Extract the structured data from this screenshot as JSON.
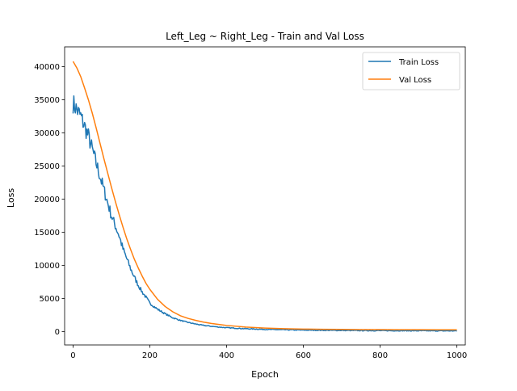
{
  "chart_data": {
    "type": "line",
    "title": "Left_Leg ~ Right_Leg - Train and Val Loss",
    "xlabel": "Epoch",
    "ylabel": "Loss",
    "xlim": [
      -22,
      1022
    ],
    "ylim": [
      -2000,
      43000
    ],
    "xticks": [
      0,
      200,
      400,
      600,
      800,
      1000
    ],
    "yticks": [
      0,
      5000,
      10000,
      15000,
      20000,
      25000,
      30000,
      35000,
      40000
    ],
    "grid": false,
    "legend_placement": "top-right",
    "series": [
      {
        "name": "Train Loss",
        "color": "#1f77b4",
        "x": [
          0,
          10,
          20,
          30,
          40,
          50,
          60,
          70,
          80,
          90,
          100,
          110,
          120,
          130,
          140,
          150,
          160,
          170,
          180,
          190,
          200,
          220,
          240,
          260,
          280,
          300,
          320,
          340,
          360,
          380,
          400,
          450,
          500,
          550,
          600,
          650,
          700,
          750,
          800,
          850,
          900,
          950,
          1000
        ],
        "values": [
          34500,
          33500,
          32500,
          31000,
          29500,
          27500,
          25500,
          23500,
          21500,
          19500,
          17500,
          16000,
          14500,
          12500,
          11000,
          9500,
          8200,
          7000,
          6000,
          5200,
          4300,
          3400,
          2700,
          2100,
          1700,
          1400,
          1150,
          950,
          820,
          700,
          600,
          450,
          350,
          290,
          240,
          210,
          190,
          170,
          160,
          150,
          140,
          130,
          120
        ]
      },
      {
        "name": "Val Loss",
        "color": "#ff7f0e",
        "x": [
          0,
          10,
          20,
          30,
          40,
          50,
          60,
          70,
          80,
          90,
          100,
          110,
          120,
          130,
          140,
          150,
          160,
          170,
          180,
          190,
          200,
          220,
          240,
          260,
          280,
          300,
          320,
          340,
          360,
          380,
          400,
          450,
          500,
          550,
          600,
          650,
          700,
          750,
          800,
          850,
          900,
          950,
          1000
        ],
        "values": [
          40800,
          39800,
          38500,
          36800,
          35000,
          33000,
          30800,
          28500,
          26200,
          24000,
          21800,
          19700,
          17700,
          15800,
          14000,
          12400,
          10900,
          9600,
          8400,
          7300,
          6400,
          4900,
          3800,
          3000,
          2400,
          2000,
          1700,
          1450,
          1250,
          1100,
          950,
          700,
          550,
          450,
          400,
          360,
          340,
          320,
          310,
          300,
          295,
          290,
          285
        ]
      }
    ]
  }
}
